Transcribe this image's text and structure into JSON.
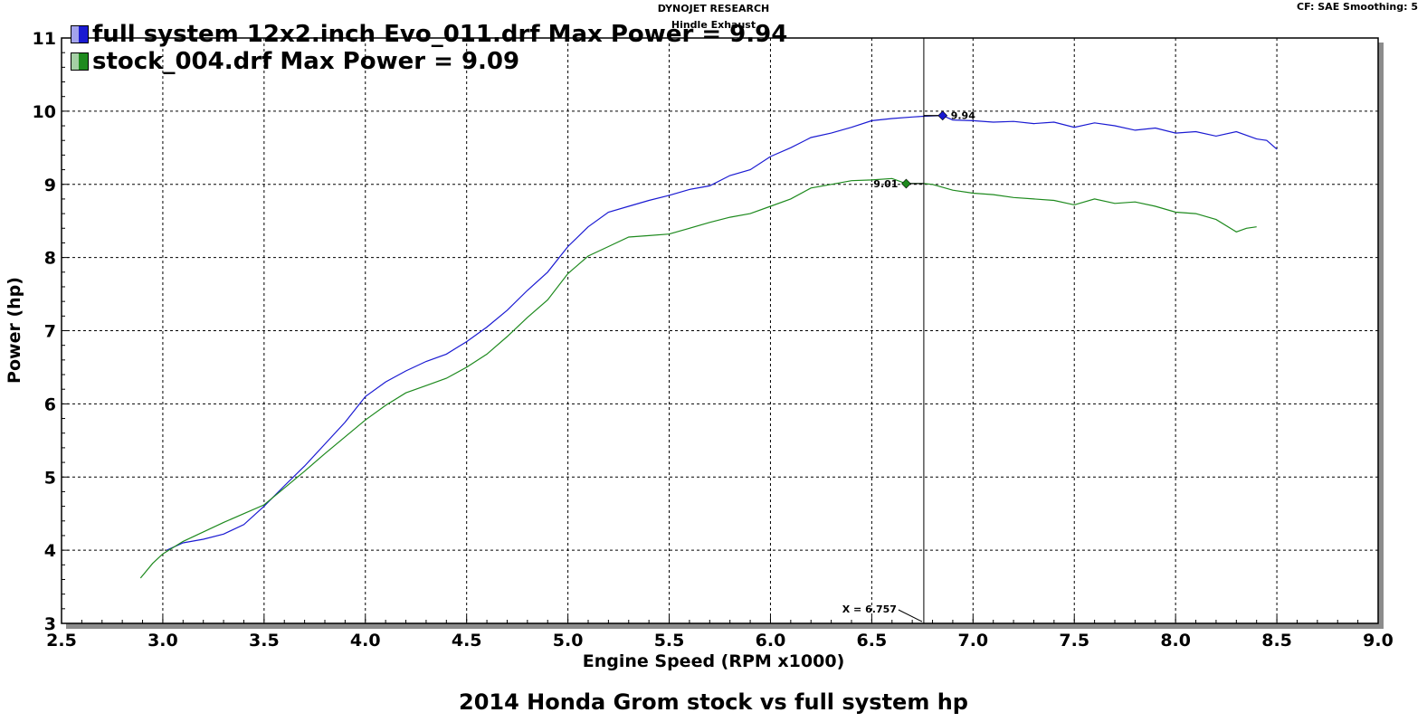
{
  "header": {
    "title": "DYNOJET RESEARCH",
    "subtitle": "Hindle Exhaust",
    "right": "CF: SAE  Smoothing: 5"
  },
  "caption": "2014 Honda Grom stock vs full system hp",
  "legend": [
    {
      "text": "full system 12x2.inch Evo_011.drf Max Power = 9.94",
      "color": "#1a1ad2"
    },
    {
      "text": "stock_004.drf Max Power = 9.09",
      "color": "#1e8a1e"
    }
  ],
  "chart_data": {
    "type": "line",
    "title": "",
    "xlabel": "Engine Speed (RPM x1000)",
    "ylabel": "Power (hp)",
    "xlim": [
      2.5,
      9.0
    ],
    "ylim": [
      3,
      11
    ],
    "xticks": [
      "2.5",
      "3.0",
      "3.5",
      "4.0",
      "4.5",
      "5.0",
      "5.5",
      "6.0",
      "6.5",
      "7.0",
      "7.5",
      "8.0",
      "8.5",
      "9.0"
    ],
    "yticks": [
      "3",
      "4",
      "5",
      "6",
      "7",
      "8",
      "9",
      "10",
      "11"
    ],
    "grid": true,
    "cursor": {
      "x": 6.757,
      "label": "X = 6.757"
    },
    "markers": [
      {
        "series": 0,
        "x": 6.85,
        "y": 9.94,
        "label": "9.94"
      },
      {
        "series": 1,
        "x": 6.67,
        "y": 9.01,
        "label": "9.01"
      }
    ],
    "series": [
      {
        "name": "full system 12x2.inch Evo_011.drf",
        "color": "#1a1ad2",
        "points": [
          [
            3.02,
            4.0
          ],
          [
            3.1,
            4.1
          ],
          [
            3.2,
            4.15
          ],
          [
            3.3,
            4.22
          ],
          [
            3.4,
            4.35
          ],
          [
            3.5,
            4.6
          ],
          [
            3.6,
            4.88
          ],
          [
            3.7,
            5.15
          ],
          [
            3.8,
            5.45
          ],
          [
            3.9,
            5.75
          ],
          [
            4.0,
            6.1
          ],
          [
            4.1,
            6.3
          ],
          [
            4.2,
            6.45
          ],
          [
            4.3,
            6.58
          ],
          [
            4.4,
            6.68
          ],
          [
            4.5,
            6.85
          ],
          [
            4.6,
            7.05
          ],
          [
            4.7,
            7.28
          ],
          [
            4.8,
            7.55
          ],
          [
            4.9,
            7.8
          ],
          [
            5.0,
            8.15
          ],
          [
            5.1,
            8.42
          ],
          [
            5.2,
            8.62
          ],
          [
            5.3,
            8.7
          ],
          [
            5.4,
            8.78
          ],
          [
            5.5,
            8.85
          ],
          [
            5.6,
            8.93
          ],
          [
            5.7,
            8.98
          ],
          [
            5.8,
            9.12
          ],
          [
            5.9,
            9.2
          ],
          [
            6.0,
            9.38
          ],
          [
            6.1,
            9.5
          ],
          [
            6.2,
            9.64
          ],
          [
            6.3,
            9.7
          ],
          [
            6.4,
            9.78
          ],
          [
            6.5,
            9.87
          ],
          [
            6.6,
            9.9
          ],
          [
            6.7,
            9.92
          ],
          [
            6.757,
            9.93
          ],
          [
            6.85,
            9.94
          ],
          [
            6.9,
            9.88
          ],
          [
            7.0,
            9.87
          ],
          [
            7.1,
            9.85
          ],
          [
            7.2,
            9.86
          ],
          [
            7.3,
            9.83
          ],
          [
            7.4,
            9.85
          ],
          [
            7.5,
            9.78
          ],
          [
            7.6,
            9.84
          ],
          [
            7.7,
            9.8
          ],
          [
            7.8,
            9.74
          ],
          [
            7.9,
            9.77
          ],
          [
            8.0,
            9.7
          ],
          [
            8.1,
            9.72
          ],
          [
            8.2,
            9.66
          ],
          [
            8.3,
            9.72
          ],
          [
            8.4,
            9.62
          ],
          [
            8.45,
            9.6
          ],
          [
            8.5,
            9.48
          ]
        ]
      },
      {
        "name": "stock_004.drf",
        "color": "#1e8a1e",
        "points": [
          [
            2.89,
            3.62
          ],
          [
            2.95,
            3.82
          ],
          [
            3.0,
            3.95
          ],
          [
            3.1,
            4.12
          ],
          [
            3.2,
            4.25
          ],
          [
            3.3,
            4.38
          ],
          [
            3.4,
            4.5
          ],
          [
            3.5,
            4.62
          ],
          [
            3.6,
            4.85
          ],
          [
            3.7,
            5.08
          ],
          [
            3.8,
            5.32
          ],
          [
            3.9,
            5.55
          ],
          [
            4.0,
            5.78
          ],
          [
            4.1,
            5.98
          ],
          [
            4.2,
            6.15
          ],
          [
            4.3,
            6.25
          ],
          [
            4.4,
            6.35
          ],
          [
            4.5,
            6.5
          ],
          [
            4.6,
            6.68
          ],
          [
            4.7,
            6.92
          ],
          [
            4.8,
            7.18
          ],
          [
            4.9,
            7.42
          ],
          [
            5.0,
            7.78
          ],
          [
            5.1,
            8.02
          ],
          [
            5.2,
            8.15
          ],
          [
            5.3,
            8.28
          ],
          [
            5.4,
            8.3
          ],
          [
            5.5,
            8.32
          ],
          [
            5.6,
            8.4
          ],
          [
            5.7,
            8.48
          ],
          [
            5.8,
            8.55
          ],
          [
            5.9,
            8.6
          ],
          [
            6.0,
            8.7
          ],
          [
            6.1,
            8.8
          ],
          [
            6.2,
            8.95
          ],
          [
            6.3,
            9.0
          ],
          [
            6.4,
            9.05
          ],
          [
            6.5,
            9.06
          ],
          [
            6.6,
            9.08
          ],
          [
            6.67,
            9.01
          ],
          [
            6.757,
            9.01
          ],
          [
            6.8,
            9.0
          ],
          [
            6.9,
            8.92
          ],
          [
            7.0,
            8.88
          ],
          [
            7.1,
            8.86
          ],
          [
            7.2,
            8.82
          ],
          [
            7.3,
            8.8
          ],
          [
            7.4,
            8.78
          ],
          [
            7.5,
            8.72
          ],
          [
            7.6,
            8.8
          ],
          [
            7.7,
            8.74
          ],
          [
            7.8,
            8.76
          ],
          [
            7.9,
            8.7
          ],
          [
            8.0,
            8.62
          ],
          [
            8.1,
            8.6
          ],
          [
            8.2,
            8.52
          ],
          [
            8.3,
            8.35
          ],
          [
            8.35,
            8.4
          ],
          [
            8.4,
            8.42
          ]
        ]
      }
    ]
  }
}
